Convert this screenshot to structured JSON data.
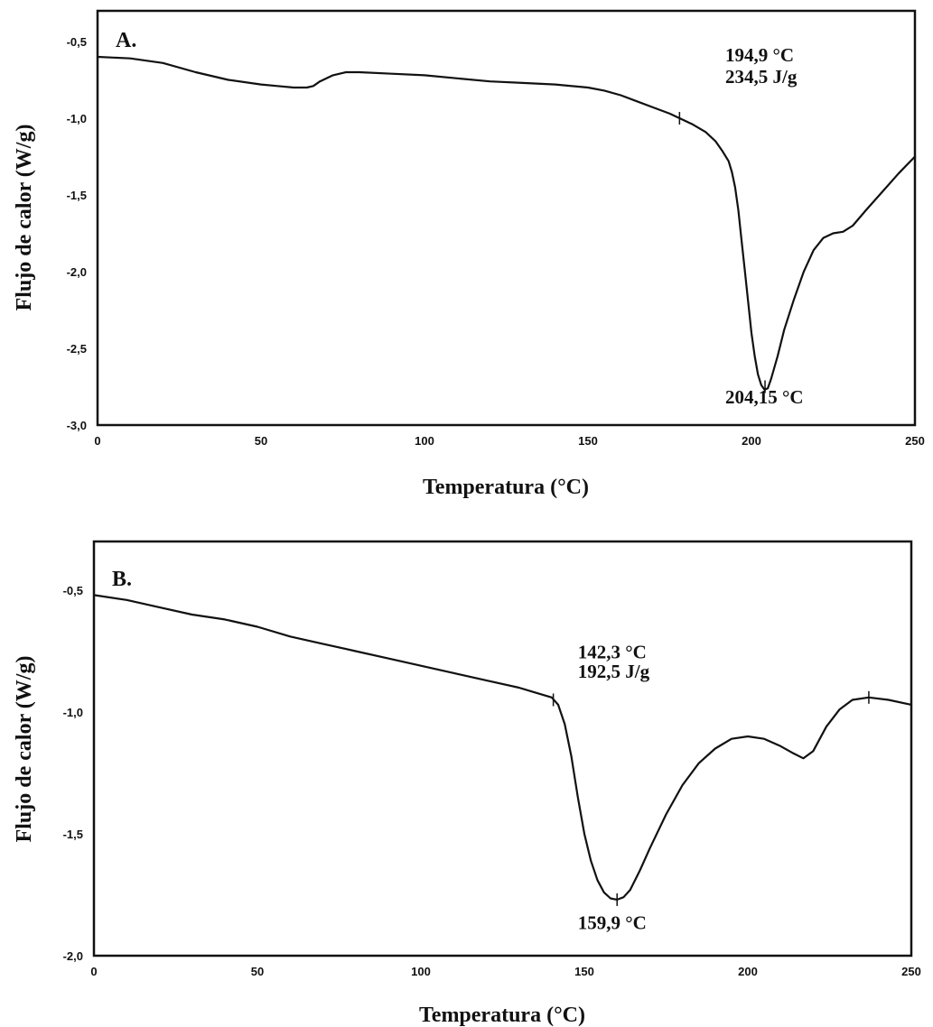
{
  "chart_data": [
    {
      "type": "line",
      "panel_label": "A.",
      "xlabel": "Temperatura (°C)",
      "ylabel": "Flujo de calor (W/g)",
      "xlim": [
        0,
        250
      ],
      "ylim": [
        -3.0,
        -0.3
      ],
      "xticks": [
        0,
        50,
        100,
        150,
        200,
        250
      ],
      "xtick_labels": [
        "0",
        "50",
        "100",
        "150",
        "200",
        "250"
      ],
      "yticks": [
        -0.5,
        -1.0,
        -1.5,
        -2.0,
        -2.5,
        -3.0
      ],
      "ytick_labels": [
        "-0,5",
        "-1,0",
        "-1,5",
        "-2,0",
        "-2,5",
        "-3,0"
      ],
      "grid": false,
      "annotations": [
        {
          "text": "194,9 °C",
          "x": 192,
          "y": -0.63
        },
        {
          "text": "234,5 J/g",
          "x": 192,
          "y": -0.77
        },
        {
          "text": "204,15 °C",
          "x": 192,
          "y": -2.86
        }
      ],
      "markers": [
        {
          "x": 178,
          "y": -1.0
        },
        {
          "x": 204.15,
          "y": -2.75
        },
        {
          "x": 250,
          "y": -1.25
        }
      ],
      "series": [
        {
          "x": [
            0,
            10,
            20,
            30,
            40,
            50,
            55,
            60,
            64,
            66,
            68,
            72,
            76,
            80,
            90,
            100,
            110,
            120,
            130,
            140,
            150,
            155,
            160,
            165,
            170,
            175,
            178,
            182,
            186,
            189,
            191,
            193,
            194,
            195,
            196,
            197,
            198,
            199,
            200,
            201,
            202,
            203,
            204,
            205,
            206,
            208,
            210,
            213,
            216,
            219,
            222,
            225,
            228,
            231,
            235,
            240,
            245,
            250
          ],
          "y": [
            -0.6,
            -0.61,
            -0.64,
            -0.7,
            -0.75,
            -0.78,
            -0.79,
            -0.8,
            -0.8,
            -0.79,
            -0.76,
            -0.72,
            -0.7,
            -0.7,
            -0.71,
            -0.72,
            -0.74,
            -0.76,
            -0.77,
            -0.78,
            -0.8,
            -0.82,
            -0.85,
            -0.89,
            -0.93,
            -0.97,
            -1.0,
            -1.04,
            -1.09,
            -1.15,
            -1.21,
            -1.28,
            -1.35,
            -1.45,
            -1.6,
            -1.8,
            -2.0,
            -2.2,
            -2.4,
            -2.55,
            -2.67,
            -2.74,
            -2.77,
            -2.76,
            -2.7,
            -2.55,
            -2.38,
            -2.18,
            -2.0,
            -1.86,
            -1.78,
            -1.75,
            -1.74,
            -1.7,
            -1.6,
            -1.48,
            -1.36,
            -1.25
          ]
        }
      ]
    },
    {
      "type": "line",
      "panel_label": "B.",
      "xlabel": "Temperatura (°C)",
      "ylabel": "Flujo de calor (W/g)",
      "xlim": [
        0,
        250
      ],
      "ylim": [
        -2.0,
        -0.3
      ],
      "xticks": [
        0,
        50,
        100,
        150,
        200,
        250
      ],
      "xtick_labels": [
        "0",
        "50",
        "100",
        "150",
        "200",
        "250"
      ],
      "yticks": [
        -0.5,
        -1.0,
        -1.5,
        -2.0
      ],
      "ytick_labels": [
        "-0,5",
        "-1,0",
        "-1,5",
        "-2,0"
      ],
      "grid": false,
      "annotations": [
        {
          "text": "142,3 °C",
          "x": 148,
          "y": -0.78
        },
        {
          "text": "192,5 J/g",
          "x": 148,
          "y": -0.86
        },
        {
          "text": "159,9 °C",
          "x": 148,
          "y": -1.89
        }
      ],
      "markers": [
        {
          "x": 140.5,
          "y": -0.95
        },
        {
          "x": 160,
          "y": -1.77
        },
        {
          "x": 237,
          "y": -0.94
        }
      ],
      "series": [
        {
          "x": [
            0,
            10,
            20,
            30,
            40,
            50,
            60,
            70,
            80,
            90,
            100,
            110,
            120,
            130,
            135,
            140,
            142,
            144,
            146,
            148,
            150,
            152,
            154,
            156,
            158,
            160,
            162,
            164,
            167,
            170,
            175,
            180,
            185,
            190,
            195,
            200,
            205,
            210,
            214,
            217,
            220,
            224,
            228,
            232,
            237,
            243,
            250
          ],
          "y": [
            -0.52,
            -0.54,
            -0.57,
            -0.6,
            -0.62,
            -0.65,
            -0.69,
            -0.72,
            -0.75,
            -0.78,
            -0.81,
            -0.84,
            -0.87,
            -0.9,
            -0.92,
            -0.94,
            -0.97,
            -1.05,
            -1.18,
            -1.35,
            -1.5,
            -1.61,
            -1.69,
            -1.74,
            -1.765,
            -1.77,
            -1.76,
            -1.73,
            -1.65,
            -1.56,
            -1.42,
            -1.3,
            -1.21,
            -1.15,
            -1.11,
            -1.1,
            -1.11,
            -1.14,
            -1.17,
            -1.19,
            -1.16,
            -1.06,
            -0.99,
            -0.95,
            -0.94,
            -0.95,
            -0.97
          ]
        }
      ]
    }
  ]
}
